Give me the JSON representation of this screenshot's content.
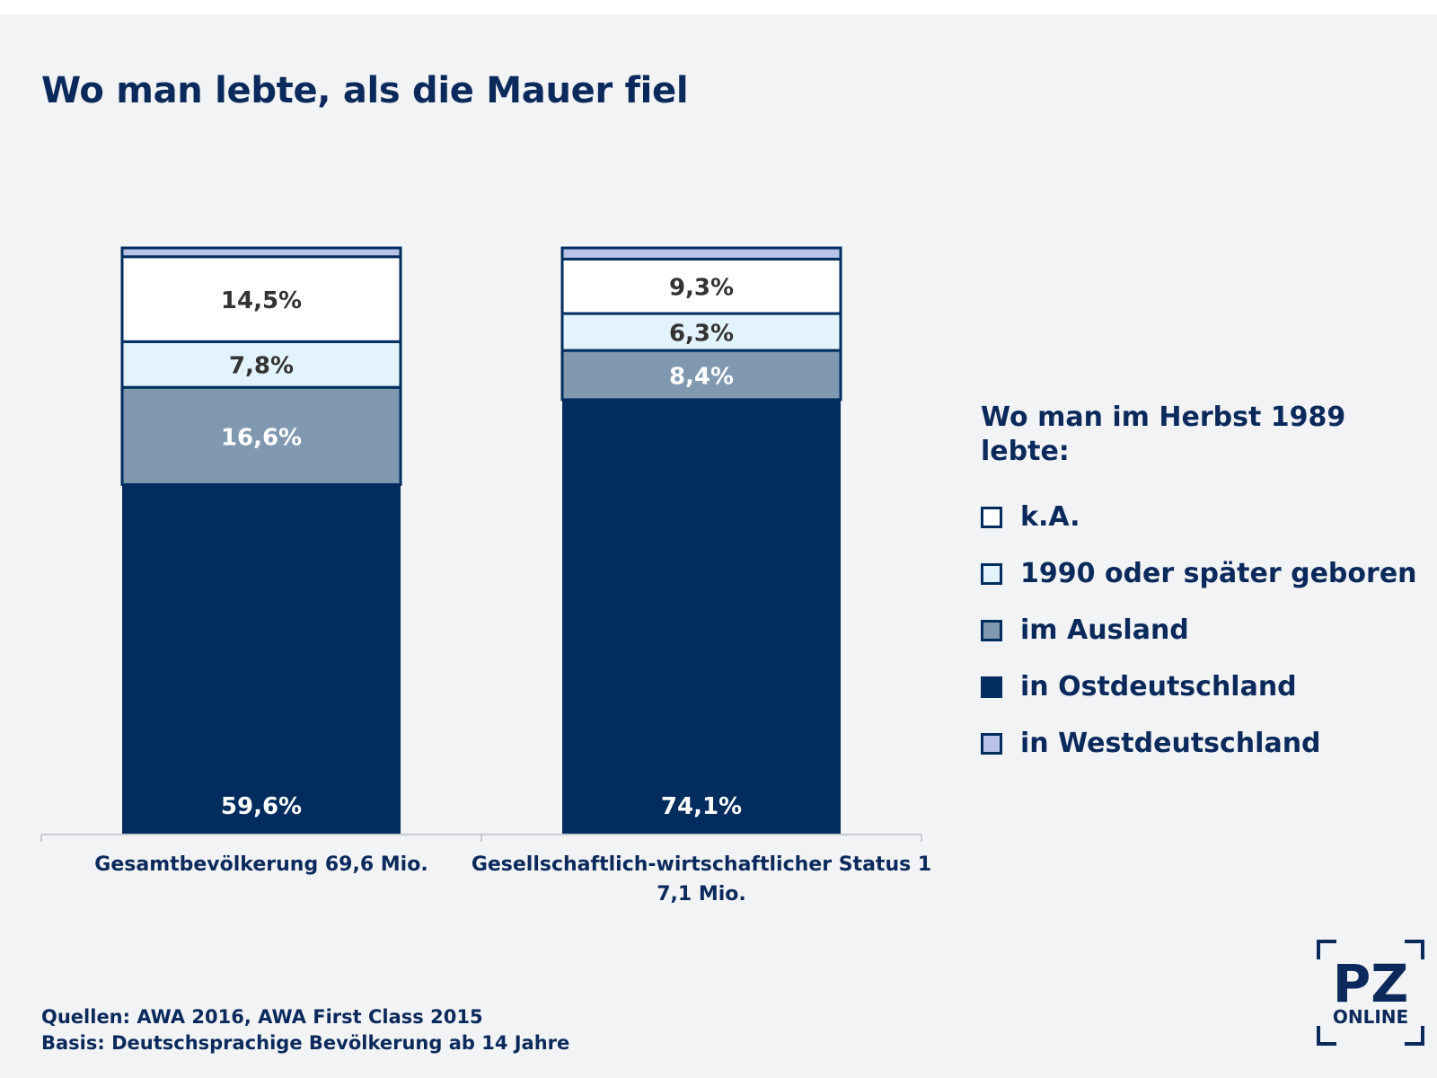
{
  "title": "Wo man lebte, als die Mauer fiel",
  "legend": {
    "title_line1": "Wo man im Herbst 1989",
    "title_line2": "lebte:",
    "items": [
      {
        "label": "k.A.",
        "color": "#ffffff"
      },
      {
        "label": "1990 oder später geboren",
        "color": "#e3f3fb"
      },
      {
        "label": "im Ausland",
        "color": "#8098b0"
      },
      {
        "label": "in Ostdeutschland",
        "color": "#002d5e"
      },
      {
        "label": "in Westdeutschland",
        "color": "#b9c3e8"
      }
    ]
  },
  "footer": {
    "line1": "Quellen: AWA 2016, AWA First Class 2015",
    "line2": "Basis: Deutschsprachige Bevölkerung ab 14 Jahre"
  },
  "logo": {
    "text_main": "PZ",
    "text_sub": "ONLINE"
  },
  "chart_data": {
    "type": "bar",
    "stacked": true,
    "ylim": [
      0,
      100
    ],
    "grid": false,
    "legend_position": "right",
    "categories": [
      "Gesamtbevölkerung 69,6 Mio.",
      "Gesellschaftlich-wirtschaftlicher Status 1 7,1 Mio."
    ],
    "category_label_lines": [
      [
        "Gesamtbevölkerung 69,6 Mio."
      ],
      [
        "Gesellschaftlich-wirtschaftlicher Status 1",
        "7,1 Mio."
      ]
    ],
    "series": [
      {
        "name": "in Ostdeutschland",
        "values": [
          59.6,
          74.1
        ],
        "labels": [
          "59,6%",
          "74,1%"
        ],
        "color": "#002d5e",
        "label_color": "#ffffff"
      },
      {
        "name": "im Ausland",
        "values": [
          16.6,
          8.4
        ],
        "labels": [
          "16,6%",
          "8,4%"
        ],
        "color": "#8098b0",
        "label_color": "#ffffff"
      },
      {
        "name": "1990 oder später geboren",
        "values": [
          7.8,
          6.3
        ],
        "labels": [
          "7,8%",
          "6,3%"
        ],
        "color": "#e3f3fb",
        "label_color": "#333333"
      },
      {
        "name": "k.A.",
        "values": [
          14.5,
          9.3
        ],
        "labels": [
          "14,5%",
          "9,3%"
        ],
        "color": "#ffffff",
        "label_color": "#333333"
      },
      {
        "name": "in Westdeutschland",
        "values": [
          1.5,
          1.9
        ],
        "labels": [
          "",
          ""
        ],
        "color": "#b9c3e8",
        "label_color": "#333333"
      }
    ]
  }
}
